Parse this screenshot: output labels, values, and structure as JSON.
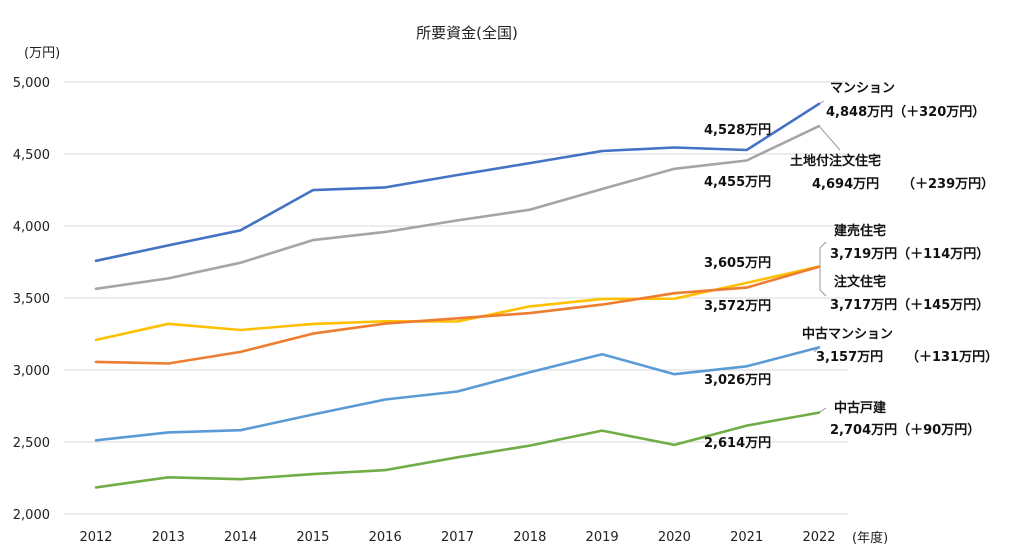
{
  "chart_data": {
    "type": "line",
    "title": "所要資金(全国)",
    "ylabel": "(万円)",
    "xlabel": "(年度)",
    "ylim": [
      2000,
      5000
    ],
    "yticks": [
      2000,
      2500,
      3000,
      3500,
      4000,
      4500,
      5000
    ],
    "ytick_labels": [
      "2,000",
      "2,500",
      "3,000",
      "3,500",
      "4,000",
      "4,500",
      "5,000"
    ],
    "grid": true,
    "legend": "none",
    "categories": [
      "2012",
      "2013",
      "2014",
      "2015",
      "2016",
      "2017",
      "2018",
      "2019",
      "2020",
      "2021",
      "2022"
    ],
    "series": [
      {
        "name": "マンション",
        "color": "#4472c4",
        "values": [
          3758,
          3865,
          3970,
          4249,
          4268,
          4354,
          4437,
          4521,
          4545,
          4528,
          4848
        ]
      },
      {
        "name": "土地付注文住宅",
        "color": "#a5a5a5",
        "values": [
          3564,
          3636,
          3745,
          3902,
          3958,
          4039,
          4113,
          4257,
          4397,
          4455,
          4694
        ]
      },
      {
        "name": "建売住宅",
        "color": "#ffc000",
        "values": [
          3209,
          3321,
          3278,
          3320,
          3338,
          3337,
          3442,
          3494,
          3495,
          3605,
          3719
        ]
      },
      {
        "name": "注文住宅",
        "color": "#ed7d31",
        "values": [
          3056,
          3045,
          3126,
          3253,
          3322,
          3359,
          3395,
          3454,
          3533,
          3572,
          3717
        ]
      },
      {
        "name": "中古マンション",
        "color": "#5b9bd5",
        "values": [
          2512,
          2567,
          2582,
          2691,
          2795,
          2851,
          2985,
          3110,
          2971,
          3026,
          3157
        ]
      },
      {
        "name": "中古戸建",
        "color": "#70ad47",
        "values": [
          2185,
          2255,
          2242,
          2277,
          2305,
          2394,
          2475,
          2579,
          2480,
          2614,
          2704
        ]
      }
    ],
    "annotations": {
      "v2021_mansion": "4,528万円",
      "v2021_land": "4,455万円",
      "v2021_tateuri": "3,605万円",
      "v2021_chumon": "3,572万円",
      "v2021_used_mansion": "3,026万円",
      "v2021_used_house": "2,614万円",
      "mansion_name": "マンション",
      "mansion_value": "4,848万円（＋320万円）",
      "land_name": "土地付注文住宅",
      "land_value": "4,694万円",
      "land_diff": "（＋239万円）",
      "tateuri_name": "建売住宅",
      "tateuri_value": "3,719万円（＋114万円）",
      "chumon_name": "注文住宅",
      "chumon_value": "3,717万円（＋145万円）",
      "used_mansion_name": "中古マンション",
      "used_mansion_value": "3,157万円",
      "used_mansion_diff": "（＋131万円）",
      "used_house_name": "中古戸建",
      "used_house_value": "2,704万円（＋90万円）"
    }
  }
}
